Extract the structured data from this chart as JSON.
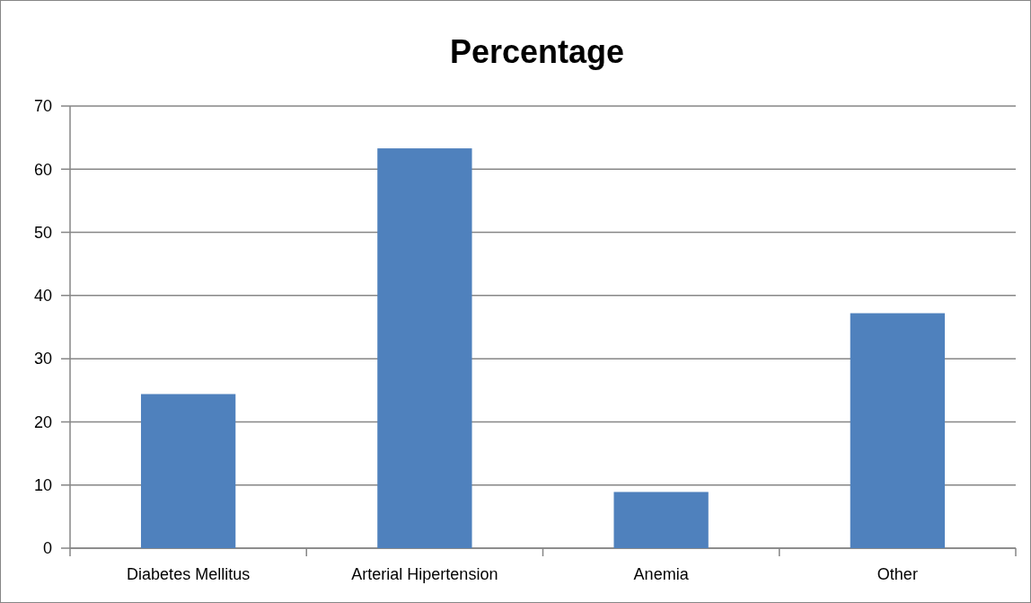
{
  "chart_data": {
    "type": "bar",
    "title": "Percentage",
    "categories": [
      "Diabetes Mellitus",
      "Arterial Hipertension",
      "Anemia",
      "Other"
    ],
    "values": [
      24.4,
      63.3,
      8.9,
      37.2
    ],
    "color": "#4f81bd",
    "ylim": [
      0,
      70
    ],
    "yticks": [
      0,
      10,
      20,
      30,
      40,
      50,
      60,
      70
    ],
    "grid": "y"
  }
}
